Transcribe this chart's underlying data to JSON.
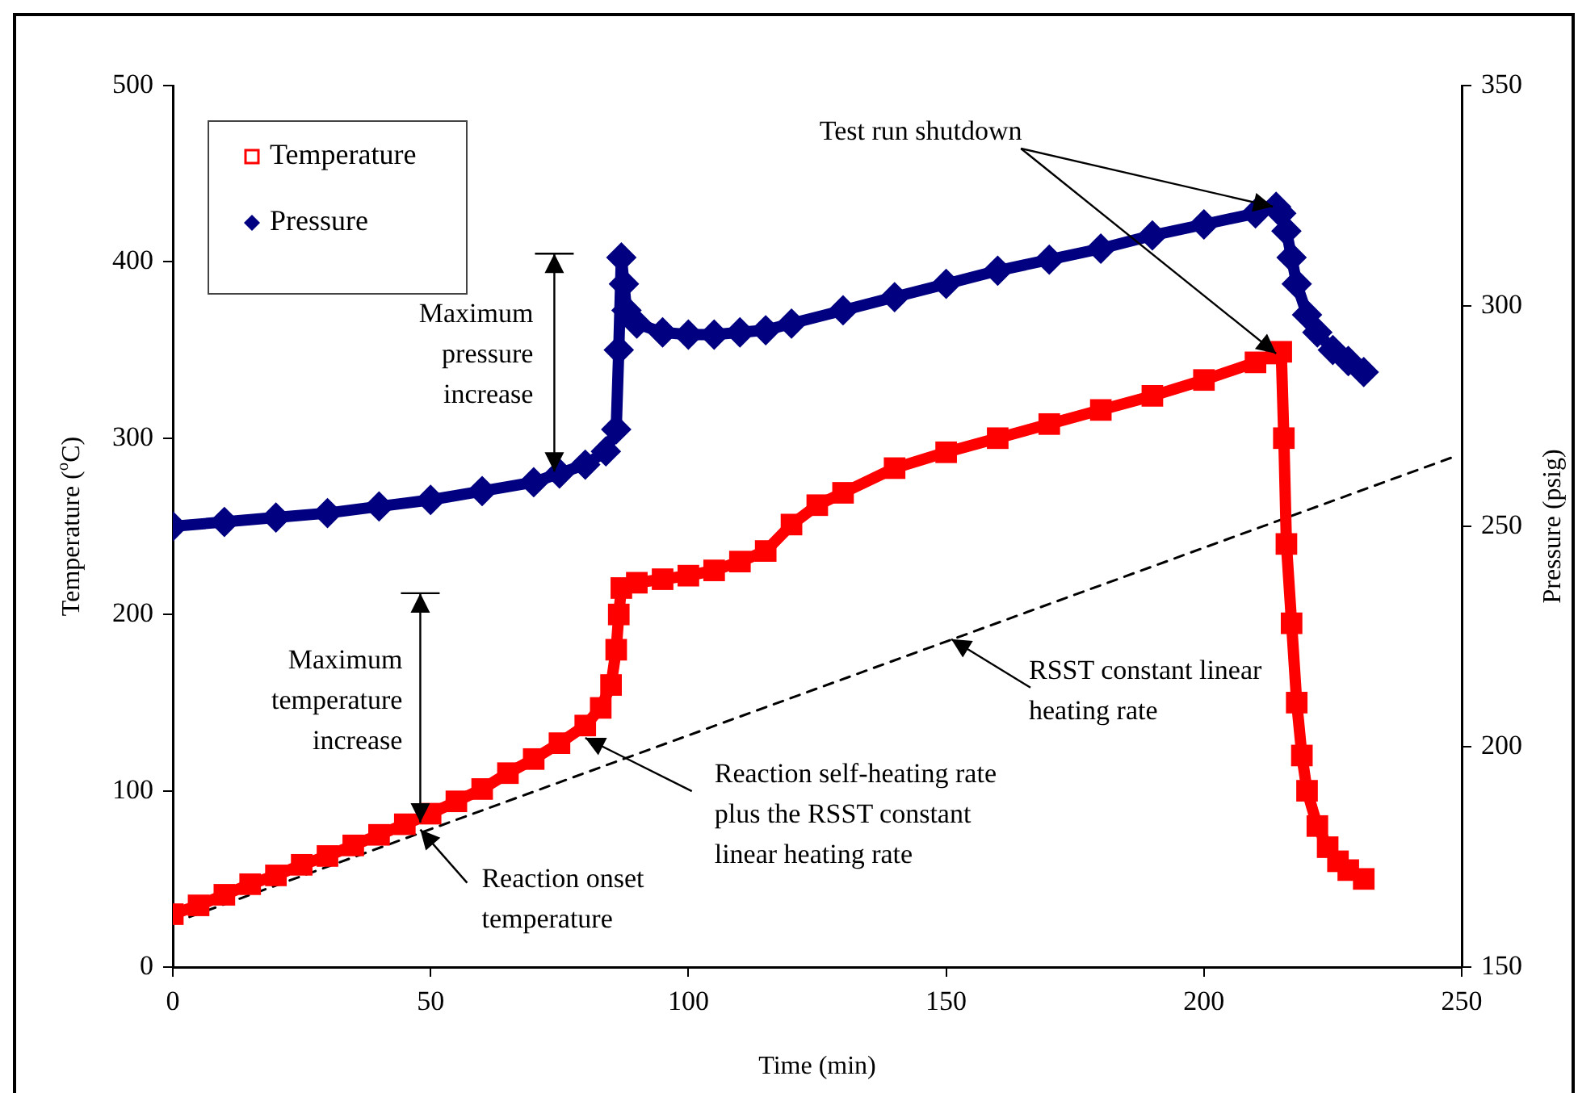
{
  "chart_data": {
    "type": "line",
    "xlabel": "Time (min)",
    "ylabel": "Temperature ($^{o}$C)",
    "y2label": "Pressure (psig)",
    "xlim": [
      0,
      250
    ],
    "xticks": [
      0,
      50,
      100,
      150,
      200,
      250
    ],
    "ylim": [
      0,
      500
    ],
    "yticks": [
      0,
      100,
      200,
      300,
      400,
      500
    ],
    "y2lim": [
      150,
      350
    ],
    "y2ticks": [
      150,
      200,
      250,
      300,
      350
    ],
    "grid": false,
    "legend": "top left",
    "series": [
      {
        "name": "Temperature",
        "color": "#ff0000",
        "marker": "square",
        "x": [
          0,
          5,
          10,
          15,
          20,
          25,
          30,
          35,
          40,
          45,
          50,
          55,
          60,
          65,
          70,
          75,
          80,
          83,
          85,
          86,
          86.5,
          87,
          90,
          95,
          100,
          105,
          110,
          115,
          120,
          125,
          130,
          140,
          150,
          160,
          170,
          180,
          190,
          200,
          210,
          214,
          215,
          215.5,
          216,
          217,
          218,
          219,
          220,
          222,
          224,
          226,
          228,
          231
        ],
        "values": [
          30,
          35,
          41,
          47,
          52,
          58,
          63,
          69,
          75,
          81,
          87,
          94,
          101,
          110,
          118,
          127,
          137,
          147,
          160,
          180,
          200,
          215,
          218,
          220,
          222,
          225,
          230,
          236,
          251,
          262,
          269,
          283,
          292,
          300,
          308,
          316,
          324,
          333,
          343,
          348,
          349,
          300,
          240,
          195,
          150,
          120,
          100,
          80,
          68,
          60,
          55,
          50
        ]
      },
      {
        "name": "Pressure",
        "color": "#000080",
        "marker": "diamond",
        "axis": "y2",
        "x": [
          0,
          10,
          20,
          30,
          40,
          50,
          60,
          70,
          75,
          80,
          84,
          86,
          86.5,
          87,
          87.5,
          88,
          90,
          95,
          100,
          105,
          110,
          115,
          120,
          130,
          140,
          150,
          160,
          170,
          180,
          190,
          200,
          210,
          214,
          215,
          216,
          217,
          218,
          220,
          222,
          225,
          228,
          231
        ],
        "values": [
          250,
          251,
          252,
          253,
          254.5,
          256,
          258,
          260,
          262,
          264,
          267,
          272,
          290,
          311,
          305,
          299,
          296,
          294,
          293.5,
          293.5,
          294,
          294.5,
          296,
          299,
          302,
          305,
          308,
          310.5,
          313,
          316,
          318.5,
          321,
          322.5,
          321,
          317,
          311,
          305,
          298,
          294,
          290,
          287.5,
          285
        ]
      },
      {
        "color": "#000000",
        "marker": "none",
        "line_style": "dashed",
        "x": [
          0,
          249
        ],
        "values": [
          25,
          290
        ]
      }
    ],
    "annotations": [
      {
        "text": "Test run shutdown",
        "x": 214,
        "y": 348
      },
      {
        "text": "Maximum pressure increase",
        "x": 74,
        "y": 281
      },
      {
        "text": "Maximum temperature increase",
        "x": 48,
        "y": 82
      },
      {
        "text": "Reaction onset temperature",
        "x": 48,
        "y": 78
      },
      {
        "text": "Reaction self-heating rate plus the RSST constant linear heating rate",
        "x": 80,
        "y": 130
      },
      {
        "text": "RSST constant linear heating rate",
        "x": 151,
        "y": 186
      }
    ]
  }
}
